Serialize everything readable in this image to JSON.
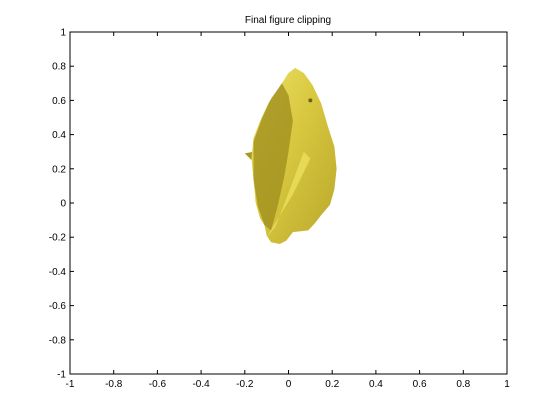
{
  "chart_data": {
    "type": "surface-3d",
    "title": "Final figure clipping",
    "xlabel": "",
    "ylabel": "",
    "xlim": [
      -1,
      1
    ],
    "ylim": [
      -1,
      1
    ],
    "xticks": [
      -1,
      -0.8,
      -0.6,
      -0.4,
      -0.2,
      0,
      0.2,
      0.4,
      0.6,
      0.8,
      1
    ],
    "yticks": [
      -1,
      -0.8,
      -0.6,
      -0.4,
      -0.2,
      0,
      0.2,
      0.4,
      0.6,
      0.8,
      1
    ],
    "xtick_labels": [
      "-1",
      "-0.8",
      "-0.6",
      "-0.4",
      "-0.2",
      "0",
      "0.2",
      "0.4",
      "0.6",
      "0.8",
      "1"
    ],
    "ytick_labels": [
      "-1",
      "-0.8",
      "-0.6",
      "-0.4",
      "-0.2",
      "0",
      "0.2",
      "0.4",
      "0.6",
      "0.8",
      "1"
    ],
    "grid": false,
    "surface_color": "#d4c43a",
    "subject": "3D model of a fish (shark-like) rendered as a shaded surface",
    "outline": [
      [
        0.03,
        0.79
      ],
      [
        0.07,
        0.76
      ],
      [
        0.11,
        0.69
      ],
      [
        0.15,
        0.58
      ],
      [
        0.18,
        0.45
      ],
      [
        0.21,
        0.33
      ],
      [
        0.22,
        0.2
      ],
      [
        0.21,
        0.08
      ],
      [
        0.19,
        -0.01
      ],
      [
        0.15,
        -0.07
      ],
      [
        0.12,
        -0.12
      ],
      [
        0.09,
        -0.16
      ],
      [
        0.02,
        -0.17
      ],
      [
        -0.01,
        -0.22
      ],
      [
        -0.04,
        -0.24
      ],
      [
        -0.08,
        -0.23
      ],
      [
        -0.1,
        -0.19
      ],
      [
        -0.11,
        -0.13
      ],
      [
        -0.13,
        -0.09
      ],
      [
        -0.15,
        0.0
      ],
      [
        -0.16,
        0.14
      ],
      [
        -0.17,
        0.26
      ],
      [
        -0.16,
        0.38
      ],
      [
        -0.13,
        0.48
      ],
      [
        -0.09,
        0.59
      ],
      [
        -0.06,
        0.64
      ],
      [
        -0.03,
        0.7
      ],
      [
        0.0,
        0.76
      ]
    ],
    "dorsal_fin": [
      [
        -0.16,
        0.3
      ],
      [
        -0.2,
        0.29
      ],
      [
        -0.16,
        0.24
      ]
    ],
    "pectoral_fin": [
      [
        0.07,
        0.3
      ],
      [
        0.1,
        0.26
      ],
      [
        0.02,
        0.05
      ],
      [
        -0.1,
        -0.2
      ],
      [
        -0.06,
        -0.14
      ],
      [
        0.0,
        0.06
      ]
    ],
    "shadow_region": [
      [
        -0.03,
        0.7
      ],
      [
        0.0,
        0.63
      ],
      [
        0.02,
        0.48
      ],
      [
        0.0,
        0.3
      ],
      [
        -0.02,
        0.15
      ],
      [
        -0.05,
        -0.02
      ],
      [
        -0.08,
        -0.16
      ],
      [
        -0.11,
        -0.13
      ],
      [
        -0.14,
        -0.02
      ],
      [
        -0.16,
        0.14
      ],
      [
        -0.16,
        0.36
      ],
      [
        -0.12,
        0.5
      ],
      [
        -0.08,
        0.61
      ]
    ],
    "eye": [
      0.1,
      0.6
    ]
  }
}
